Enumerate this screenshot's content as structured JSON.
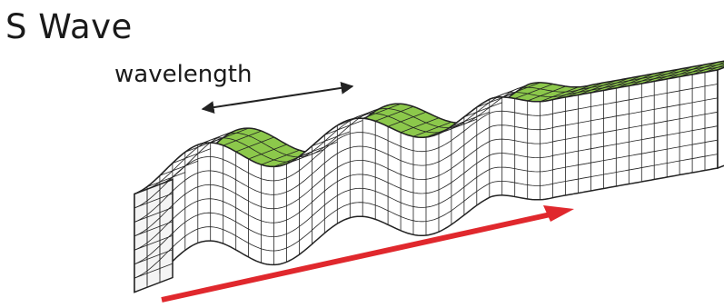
{
  "title": "S Wave",
  "wavelength_label": "wavelength",
  "colors": {
    "top_surface": "#8cc84b",
    "grid_line": "#222222",
    "arrow": "#e0282d",
    "background": "#ffffff"
  }
}
